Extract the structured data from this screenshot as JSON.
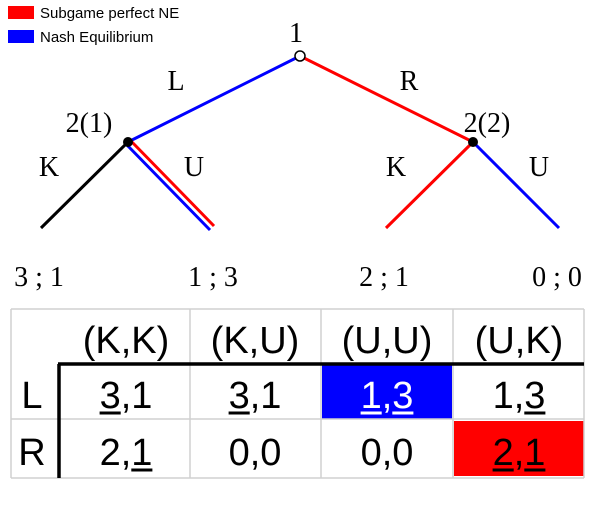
{
  "legend": [
    {
      "label": "Subgame perfect NE",
      "color": "#ff0000"
    },
    {
      "label": "Nash Equilibrium",
      "color": "#0000ff"
    }
  ],
  "tree": {
    "root_label": "1",
    "left_action": "L",
    "right_action": "R",
    "left_node_label": "2(1)",
    "right_node_label": "2(2)",
    "left_node_actions": [
      "K",
      "U"
    ],
    "right_node_actions": [
      "K",
      "U"
    ],
    "payoffs": [
      "3 ; 1",
      "1 ; 3",
      "2 ; 1",
      "0 ; 0"
    ]
  },
  "matrix": {
    "columns": [
      "(K,K)",
      "(K,U)",
      "(U,U)",
      "(U,K)"
    ],
    "rows": [
      {
        "label": "L",
        "cells": [
          {
            "a": "3",
            "b": "1",
            "ua": true,
            "ub": false,
            "fill": ""
          },
          {
            "a": "3",
            "b": "1",
            "ua": true,
            "ub": false,
            "fill": ""
          },
          {
            "a": "1",
            "b": "3",
            "ua": true,
            "ub": true,
            "fill": "#0000ff",
            "text": "#ffffff"
          },
          {
            "a": "1",
            "b": "3",
            "ua": false,
            "ub": true,
            "fill": ""
          }
        ]
      },
      {
        "label": "R",
        "cells": [
          {
            "a": "2",
            "b": "1",
            "ua": false,
            "ub": true,
            "fill": ""
          },
          {
            "a": "0",
            "b": "0",
            "ua": false,
            "ub": false,
            "fill": ""
          },
          {
            "a": "0",
            "b": "0",
            "ua": false,
            "ub": false,
            "fill": ""
          },
          {
            "a": "2",
            "b": "1",
            "ua": true,
            "ub": true,
            "fill": "#ff0000",
            "text": "#000000"
          }
        ]
      }
    ]
  },
  "colors": {
    "spne": "#ff0000",
    "ne": "#0000ff",
    "neutral": "#000000",
    "grid": "#d0d0d0"
  }
}
